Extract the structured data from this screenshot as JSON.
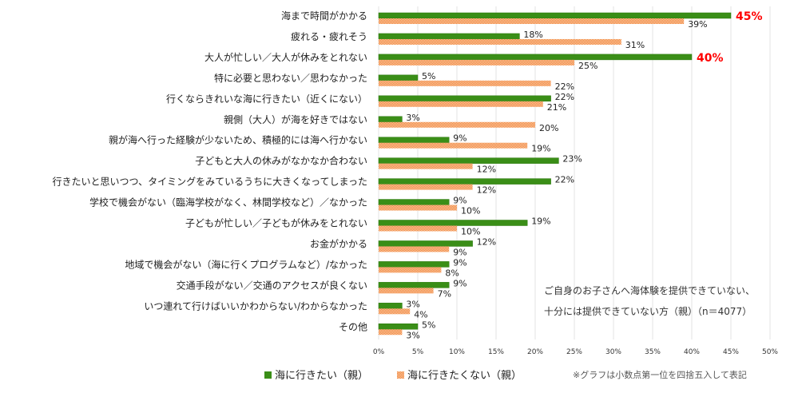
{
  "chart_data": {
    "type": "bar",
    "orientation": "horizontal",
    "categories": [
      "海まで時間がかかる",
      "疲れる・疲れそう",
      "大人が忙しい／大人が休みをとれない",
      "特に必要と思わない／思わなかった",
      "行くならきれいな海に行きたい（近くにない）",
      "親側（大人）が海を好きではない",
      "親が海へ行った経験が少ないため、積極的には海へ行かない",
      "子どもと大人の休みがなかなか合わない",
      "行きたいと思いつつ、タイミングをみているうちに大きくなってしまった",
      "学校で機会がない（臨海学校がなく、林間学校など）／なかった",
      "子どもが忙しい／子どもが休みをとれない",
      "お金がかかる",
      "地域で機会がない（海に行くプログラムなど）/なかった",
      "交通手段がない／交通のアクセスが良くない",
      "いつ連れて行けばいいかわからない/わからなかった",
      "その他"
    ],
    "series": [
      {
        "name": "海に行きたい（親）",
        "color": "#3a8e17",
        "values": [
          45,
          18,
          40,
          5,
          22,
          3,
          9,
          23,
          22,
          9,
          19,
          12,
          9,
          9,
          3,
          5
        ]
      },
      {
        "name": "海に行きたくない（親）",
        "color": "#f07c2a",
        "pattern": "checker",
        "values": [
          39,
          31,
          25,
          22,
          21,
          20,
          19,
          12,
          12,
          10,
          10,
          9,
          8,
          7,
          4,
          3
        ]
      }
    ],
    "highlight_labels": {
      "color": "#ff0000",
      "items": [
        "海まで時間がかかる|0",
        "大人が忙しい／大人が休みをとれない|0"
      ]
    },
    "xlim": [
      0,
      50
    ],
    "xticks": [
      "0%",
      "5%",
      "10%",
      "15%",
      "20%",
      "25%",
      "30%",
      "35%",
      "40%",
      "45%",
      "50%"
    ],
    "grid": true,
    "legend_placement": "bottom-left",
    "annotation": [
      "ご自身のお子さんへ海体験を提供できていない、",
      "十分には提供できていない方（親）（n＝4077）"
    ],
    "footnote": "※グラフは小数点第一位を四捨五入して表記"
  }
}
